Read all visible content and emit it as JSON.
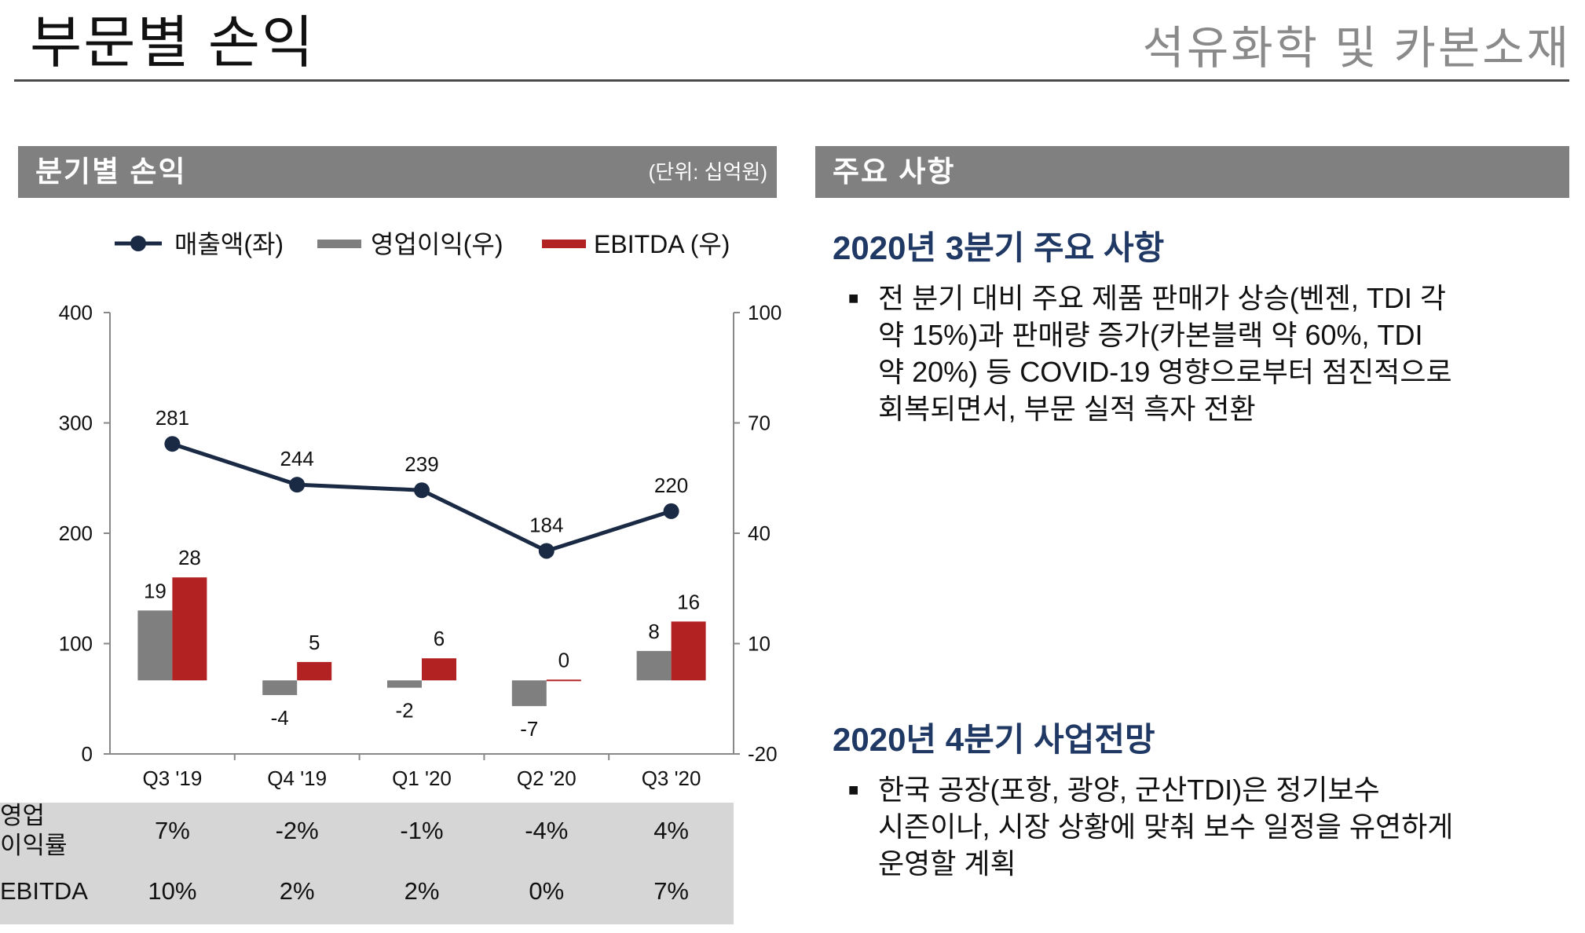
{
  "header": {
    "title": "부문별 손익",
    "subtitle": "석유화학 및 카본소재"
  },
  "left_panel": {
    "title": "분기별 손익",
    "unit": "(단위: 십억원)"
  },
  "right_panel": {
    "title": "주요 사항",
    "section1": {
      "title": "2020년 3분기 주요 사항",
      "bullet_lines": [
        "전 분기 대비 주요 제품 판매가 상승(벤젠, TDI 각",
        "약 15%)과 판매량 증가(카본블랙 약 60%, TDI",
        "약 20%) 등 COVID-19 영향으로부터 점진적으로",
        "회복되면서, 부문 실적 흑자 전환"
      ]
    },
    "section2": {
      "title": "2020년 4분기 사업전망",
      "bullet_lines": [
        "한국 공장(포항, 광양, 군산TDI)은 정기보수",
        "시즌이나, 시장 상황에 맞춰 보수 일정을 유연하게",
        "운영할 계획"
      ]
    },
    "bullet_symbol": "■"
  },
  "chart_data": {
    "type": "bar",
    "categories": [
      "Q3 '19",
      "Q4 '19",
      "Q1 '20",
      "Q2 '20",
      "Q3 '20"
    ],
    "series": [
      {
        "name": "매출액(좌)",
        "type": "line",
        "axis": "left",
        "color": "#1a2a44",
        "values": [
          281,
          244,
          239,
          184,
          220
        ]
      },
      {
        "name": "영업이익(우)",
        "type": "bar",
        "axis": "right",
        "color": "#7f7f7f",
        "values": [
          19,
          -4,
          -2,
          -7,
          8
        ]
      },
      {
        "name": "EBITDA (우)",
        "type": "bar",
        "axis": "right",
        "color": "#b22222",
        "values": [
          28,
          5,
          6,
          0,
          16
        ]
      }
    ],
    "y_left": {
      "range": [
        0,
        400
      ],
      "ticks": [
        0,
        100,
        200,
        300,
        400
      ]
    },
    "y_right": {
      "range": [
        -20,
        100
      ],
      "ticks": [
        -20,
        10,
        40,
        70,
        100
      ]
    },
    "legend": "top"
  },
  "table": {
    "rows": [
      {
        "label_lines": [
          "영업",
          "이익률"
        ],
        "values": [
          "7%",
          "-2%",
          "-1%",
          "-4%",
          "4%"
        ]
      },
      {
        "label_lines": [
          "EBITDA"
        ],
        "values": [
          "10%",
          "2%",
          "2%",
          "0%",
          "7%"
        ]
      }
    ]
  }
}
